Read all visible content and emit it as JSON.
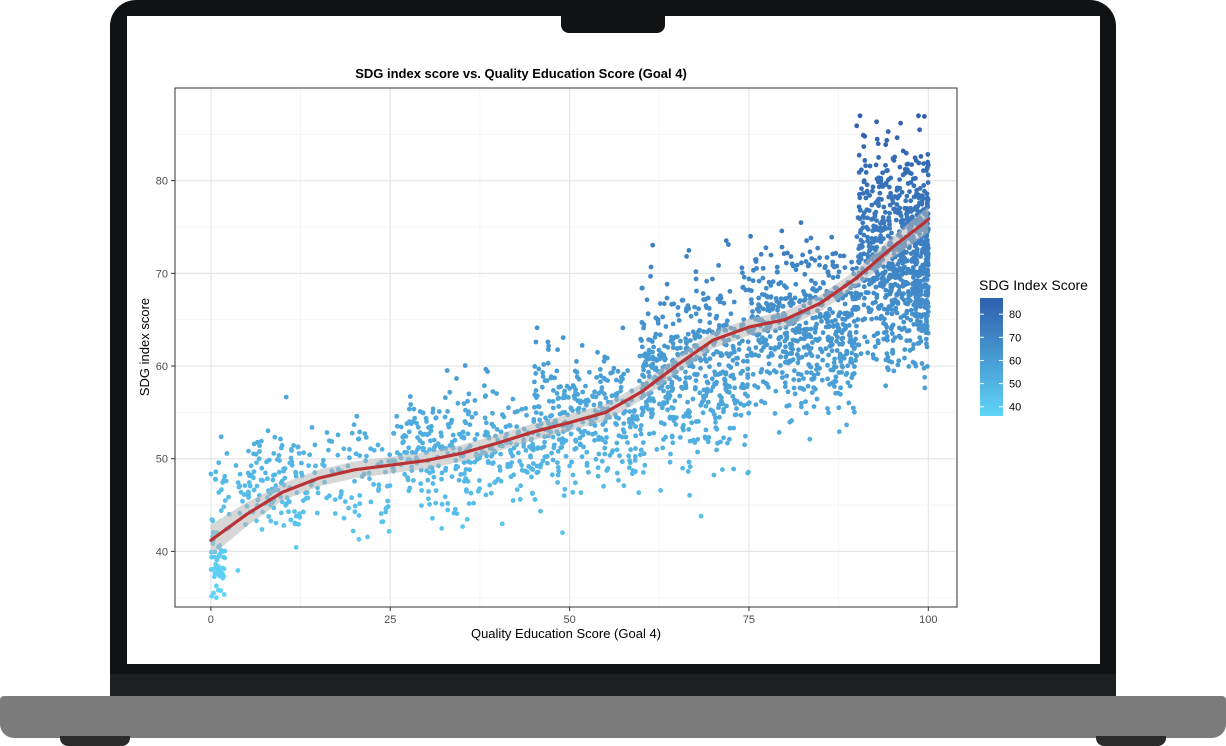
{
  "chart_data": {
    "type": "scatter",
    "title": "SDG index score vs. Quality Education Score (Goal 4)",
    "xlabel": "Quality Education Score (Goal 4)",
    "ylabel": "SDG index score",
    "xlim": [
      -5,
      104
    ],
    "ylim": [
      34,
      90
    ],
    "xticks": [
      0,
      25,
      50,
      75,
      100
    ],
    "yticks": [
      40,
      50,
      60,
      70,
      80
    ],
    "grid": true,
    "colorbar": {
      "title": "SDG Index Score",
      "ticks": [
        40,
        50,
        60,
        70,
        80
      ],
      "range": [
        36,
        87
      ],
      "low_color": "#60d4f7",
      "high_color": "#2f5fad",
      "placement": "right"
    },
    "trend": {
      "type": "loess",
      "color": "#b83236",
      "band_color": "#b7b7b7",
      "points": [
        [
          0,
          41.2
        ],
        [
          5,
          44.0
        ],
        [
          10,
          46.4
        ],
        [
          15,
          47.9
        ],
        [
          20,
          48.8
        ],
        [
          25,
          49.3
        ],
        [
          30,
          49.8
        ],
        [
          35,
          50.6
        ],
        [
          40,
          51.7
        ],
        [
          45,
          52.9
        ],
        [
          50,
          53.9
        ],
        [
          55,
          55.0
        ],
        [
          60,
          57.2
        ],
        [
          65,
          60.1
        ],
        [
          70,
          62.8
        ],
        [
          75,
          64.2
        ],
        [
          80,
          65.0
        ],
        [
          85,
          66.8
        ],
        [
          90,
          69.5
        ],
        [
          95,
          72.8
        ],
        [
          100,
          75.8
        ]
      ]
    },
    "clusters": [
      {
        "x_min": 0,
        "x_max": 2,
        "y_mean": 39,
        "y_sd": 1.8,
        "n": 45
      },
      {
        "x_min": 0,
        "x_max": 12,
        "y_mean": 46,
        "y_sd": 2.5,
        "n": 80
      },
      {
        "x_min": 5,
        "x_max": 25,
        "y_mean": 48,
        "y_sd": 3.2,
        "n": 170
      },
      {
        "x_min": 25,
        "x_max": 45,
        "y_mean": 51,
        "y_sd": 3.3,
        "n": 320
      },
      {
        "x_min": 45,
        "x_max": 60,
        "y_mean": 54.5,
        "y_sd": 3.8,
        "n": 330
      },
      {
        "x_min": 60,
        "x_max": 75,
        "y_mean": 59.5,
        "y_sd": 4.8,
        "n": 500
      },
      {
        "x_min": 75,
        "x_max": 90,
        "y_mean": 64.5,
        "y_sd": 4.2,
        "n": 560
      },
      {
        "x_min": 90,
        "x_max": 100,
        "y_mean": 72,
        "y_sd": 5.2,
        "n": 900
      }
    ]
  }
}
